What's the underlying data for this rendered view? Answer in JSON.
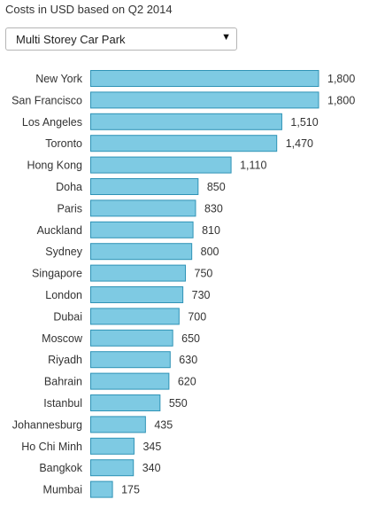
{
  "header": {
    "subtitle": "Costs in USD based on Q2 2014"
  },
  "dropdown": {
    "selected": "Multi Storey Car Park",
    "arrow_icon": "triangle-down-icon"
  },
  "colors": {
    "bar_fill": "#7ecae3",
    "bar_stroke": "#2f93b6"
  },
  "chart_data": {
    "type": "bar",
    "orientation": "horizontal",
    "title": "",
    "xlabel": "",
    "ylabel": "",
    "xlim": [
      0,
      1800
    ],
    "grid": false,
    "categories": [
      "New York",
      "San Francisco",
      "Los Angeles",
      "Toronto",
      "Hong Kong",
      "Doha",
      "Paris",
      "Auckland",
      "Sydney",
      "Singapore",
      "London",
      "Dubai",
      "Moscow",
      "Riyadh",
      "Bahrain",
      "Istanbul",
      "Johannesburg",
      "Ho Chi Minh",
      "Bangkok",
      "Mumbai"
    ],
    "values": [
      1800,
      1800,
      1510,
      1470,
      1110,
      850,
      830,
      810,
      800,
      750,
      730,
      700,
      650,
      630,
      620,
      550,
      435,
      345,
      340,
      175
    ],
    "value_labels": [
      "1,800",
      "1,800",
      "1,510",
      "1,470",
      "1,110",
      "850",
      "830",
      "810",
      "800",
      "750",
      "730",
      "700",
      "650",
      "630",
      "620",
      "550",
      "435",
      "345",
      "340",
      "175"
    ]
  }
}
